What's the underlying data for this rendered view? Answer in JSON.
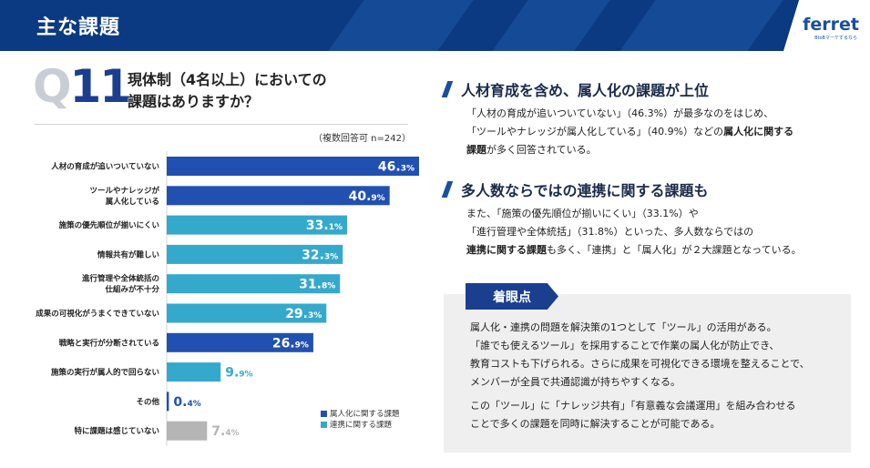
{
  "header": {
    "title": "主な課題",
    "brand": "ferret",
    "brand_sub": "BtoBマーケするなら"
  },
  "question": {
    "label_q": "Q",
    "label_num": "11",
    "title_line1": "現体制（4名以上）においての",
    "title_line2": "課題はありますか？"
  },
  "note": "（複数回答可 n=242）",
  "legend": {
    "items": [
      {
        "label": "属人化に関する課題",
        "color": "#2150b0"
      },
      {
        "label": "連携に関する課題",
        "color": "#35a9cc"
      }
    ]
  },
  "chart_data": {
    "type": "bar",
    "orientation": "horizontal",
    "categories": [
      [
        "人材の育成が追いついていない"
      ],
      [
        "ツールやナレッジが",
        "属人化している"
      ],
      [
        "施策の優先順位が揃いにくい"
      ],
      [
        "情報共有が難しい"
      ],
      [
        "進行管理や全体統括の",
        "仕組みが不十分"
      ],
      [
        "成果の可視化がうまくできていない"
      ],
      [
        "戦略と実行が分断されている"
      ],
      [
        "施策の実行が属人的で回らない"
      ],
      [
        "その他"
      ],
      [
        "特に課題は感じていない"
      ]
    ],
    "values": [
      46.3,
      40.9,
      33.1,
      32.3,
      31.8,
      29.3,
      26.9,
      9.9,
      0.4,
      7.4
    ],
    "groups": [
      "属人化",
      "属人化",
      "連携",
      "連携",
      "連携",
      "連携",
      "属人化",
      "連携",
      "属人化",
      "none"
    ],
    "colors": {
      "属人化": "#2150b0",
      "連携": "#35a9cc",
      "none": "#b5b5b5"
    },
    "unit": "%",
    "xlim": [
      0,
      46.3
    ]
  },
  "section1": {
    "heading": "人材育成を含め、属人化の課題が上位",
    "line1": "「人材の育成が追いついていない」（46.3%）が最多なのをはじめ、",
    "line2_a": "「ツールやナレッジが属人化している」（40.9%）などの",
    "line2_b": "属人化に関する",
    "line3_b": "課題",
    "line3_a": "が多く回答されている。"
  },
  "section2": {
    "heading": "多人数ならではの連携に関する課題も",
    "line1": "また、「施策の優先順位が揃いにくい」（33.1%）や",
    "line2": "「進行管理や全体統括」（31.8%）といった、多人数ならではの",
    "line3_b": "連携に関する課題",
    "line3_a": "も多く、「連携」と「属人化」が２大課題となっている。"
  },
  "panel": {
    "tag": "着眼点",
    "p1_line1": "属人化・連携の問題を解決策の1つとして「ツール」の活用がある。",
    "p1_line2": "「誰でも使えるツール」を採用することで作業の属人化が防止でき、",
    "p1_line3": "教育コストも下げられる。さらに成果を可視化できる環境を整えることで、",
    "p1_line4": "メンバーが全員で共通認識が持ちやすくなる。",
    "p2_line1": "この「ツール」に「ナレッジ共有」「有意義な会議運用」を組み合わせる",
    "p2_line2": "ことで多くの課題を同時に解決することが可能である。"
  }
}
